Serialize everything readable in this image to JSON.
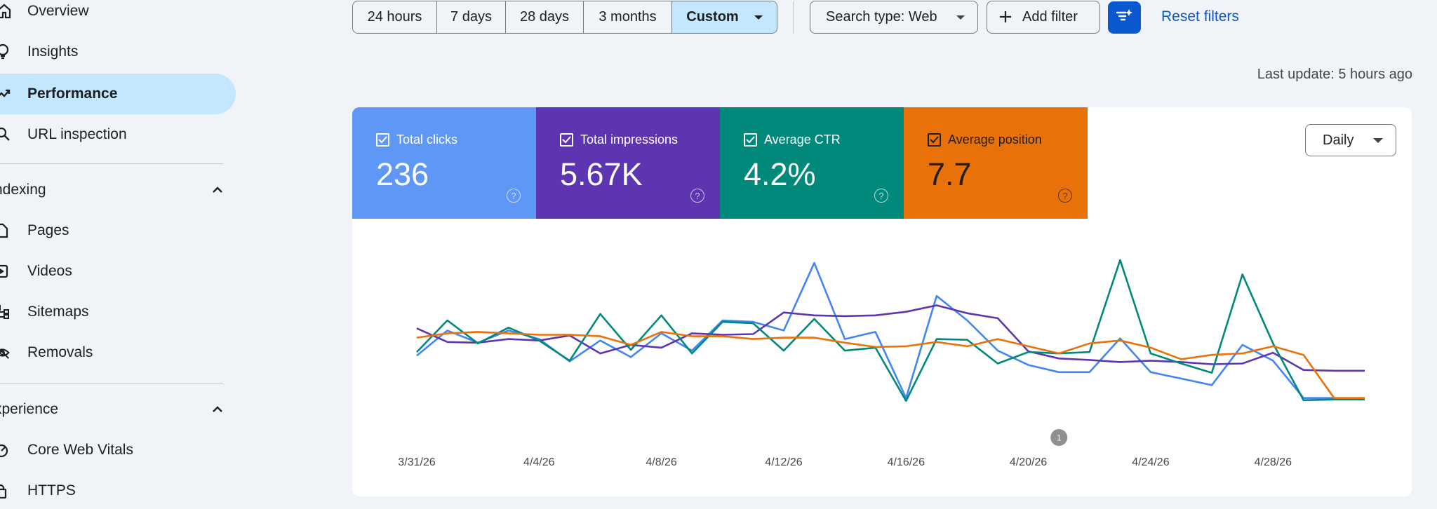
{
  "sidebar": {
    "items": [
      {
        "label": "Overview",
        "icon": "home-icon",
        "active": false
      },
      {
        "label": "Insights",
        "icon": "lightbulb-icon",
        "active": false
      },
      {
        "label": "Performance",
        "icon": "trending-up-icon",
        "active": true
      },
      {
        "label": "URL inspection",
        "icon": "search-icon",
        "active": false
      }
    ],
    "indexing": {
      "heading": "ndexing",
      "items": [
        {
          "label": "Pages",
          "icon": "page-icon"
        },
        {
          "label": "Videos",
          "icon": "video-icon"
        },
        {
          "label": "Sitemaps",
          "icon": "sitemap-icon"
        },
        {
          "label": "Removals",
          "icon": "eye-off-icon"
        }
      ]
    },
    "experience": {
      "heading": "xperience",
      "items": [
        {
          "label": "Core Web Vitals",
          "icon": "gauge-icon"
        },
        {
          "label": "HTTPS",
          "icon": "lock-icon"
        }
      ]
    }
  },
  "toolbar": {
    "ranges": [
      "24 hours",
      "7 days",
      "28 days",
      "3 months",
      "Custom"
    ],
    "selected_range": "Custom",
    "search_type": "Search type: Web",
    "add_filter": "Add filter",
    "reset_filters": "Reset filters"
  },
  "last_update": "Last update: 5 hours ago",
  "metrics": [
    {
      "label": "Total clicks",
      "value": "236",
      "color": "#5e97f6",
      "text_color": "#ffffff"
    },
    {
      "label": "Total impressions",
      "value": "5.67K",
      "color": "#5e35b1",
      "text_color": "#ffffff"
    },
    {
      "label": "Average CTR",
      "value": "4.2%",
      "color": "#00897b",
      "text_color": "#ffffff"
    },
    {
      "label": "Average position",
      "value": "7.7",
      "color": "#e8710a",
      "text_color": "#1f1f1f"
    }
  ],
  "granularity": "Daily",
  "chart_data": {
    "type": "line",
    "x": [
      "3/31/26",
      "4/1/26",
      "4/2/26",
      "4/3/26",
      "4/4/26",
      "4/5/26",
      "4/6/26",
      "4/7/26",
      "4/8/26",
      "4/9/26",
      "4/10/26",
      "4/11/26",
      "4/12/26",
      "4/13/26",
      "4/14/26",
      "4/15/26",
      "4/16/26",
      "4/17/26",
      "4/18/26",
      "4/19/26",
      "4/20/26",
      "4/21/26",
      "4/22/26",
      "4/23/26",
      "4/24/26",
      "4/25/26",
      "4/26/26",
      "4/27/26",
      "4/28/26",
      "4/29/26",
      "4/30/26",
      "5/1/26"
    ],
    "tick_labels": [
      "3/31/26",
      "4/4/26",
      "4/8/26",
      "4/12/26",
      "4/16/26",
      "4/20/26",
      "4/24/26",
      "4/28/26"
    ],
    "y_axis_visible": false,
    "grid": false,
    "annotation": {
      "label": "1",
      "x": "4/21/26"
    },
    "series": [
      {
        "name": "Total clicks",
        "color": "#4285f4",
        "values": [
          0.355,
          0.53,
          0.445,
          0.53,
          0.47,
          0.315,
          0.46,
          0.345,
          0.51,
          0.39,
          0.6,
          0.59,
          0.53,
          1.0,
          0.47,
          0.52,
          0.06,
          0.77,
          0.6,
          0.39,
          0.29,
          0.24,
          0.24,
          0.475,
          0.24,
          0.195,
          0.15,
          0.43,
          0.32,
          0.06,
          0.06,
          0.06
        ]
      },
      {
        "name": "Total impressions",
        "color": "#5e35b1",
        "values": [
          0.545,
          0.45,
          0.445,
          0.47,
          0.46,
          0.495,
          0.37,
          0.43,
          0.41,
          0.51,
          0.5,
          0.505,
          0.655,
          0.635,
          0.63,
          0.635,
          0.66,
          0.705,
          0.65,
          0.615,
          0.385,
          0.335,
          0.325,
          0.31,
          0.32,
          0.31,
          0.295,
          0.3,
          0.375,
          0.255,
          0.25,
          0.25
        ]
      },
      {
        "name": "Average CTR",
        "color": "#00897b",
        "values": [
          0.38,
          0.6,
          0.44,
          0.55,
          0.46,
          0.32,
          0.645,
          0.395,
          0.635,
          0.37,
          0.59,
          0.58,
          0.39,
          0.61,
          0.39,
          0.41,
          0.04,
          0.47,
          0.465,
          0.3,
          0.38,
          0.37,
          0.38,
          1.02,
          0.37,
          0.3,
          0.235,
          0.92,
          0.44,
          0.045,
          0.05,
          0.05
        ]
      },
      {
        "name": "Average position",
        "color": "#e8710a",
        "values": [
          0.48,
          0.51,
          0.52,
          0.51,
          0.5,
          0.5,
          0.49,
          0.43,
          0.52,
          0.49,
          0.49,
          0.47,
          0.48,
          0.48,
          0.445,
          0.415,
          0.42,
          0.45,
          0.42,
          0.47,
          0.42,
          0.37,
          0.44,
          0.46,
          0.41,
          0.33,
          0.36,
          0.37,
          0.42,
          0.36,
          0.06,
          0.06
        ]
      }
    ]
  }
}
